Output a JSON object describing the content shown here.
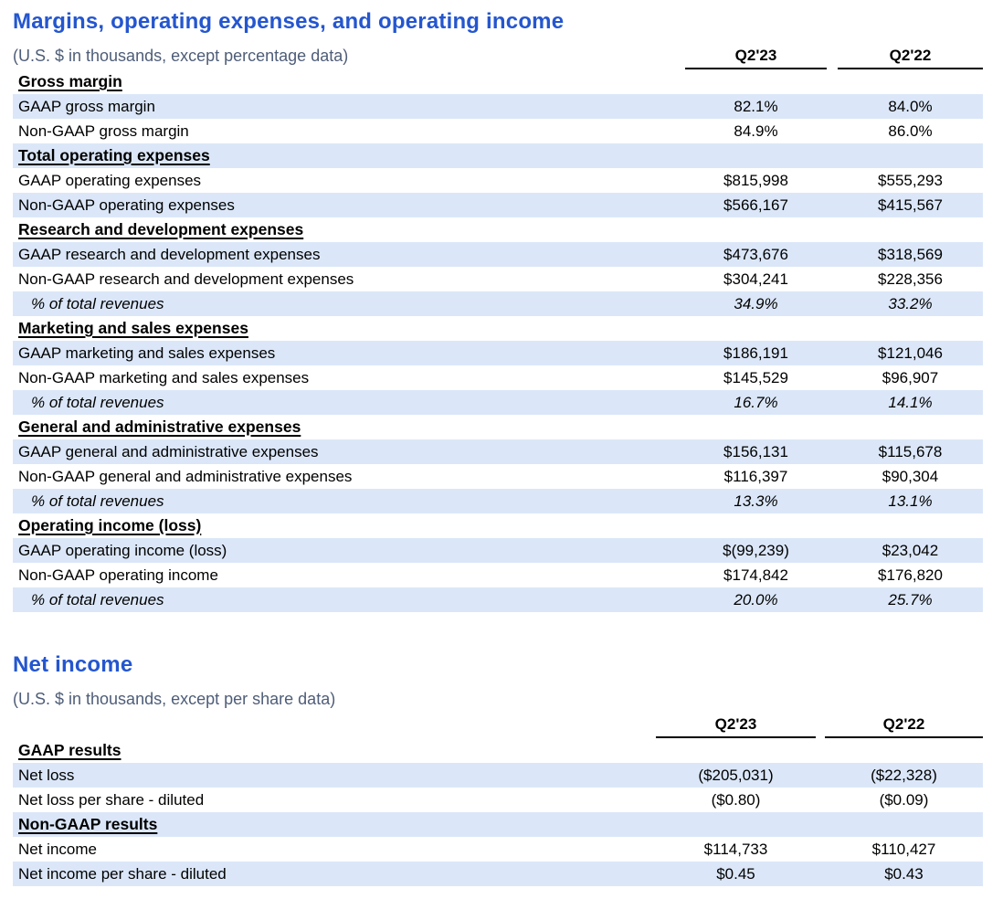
{
  "colors": {
    "title_blue": "#2456cf",
    "subtitle_gray": "#4e5d78",
    "row_shade_blue": "#dbe7f8",
    "text": "#000000"
  },
  "tables": [
    {
      "title": "Margins, operating expenses, and operating income",
      "subtitle": "(U.S. $ in thousands, except percentage data)",
      "columns": [
        "Q2'23",
        "Q2'22"
      ],
      "rows": [
        {
          "type": "section",
          "label": "Gross margin",
          "values": [
            "",
            ""
          ],
          "shaded": false
        },
        {
          "type": "data",
          "label": "GAAP gross margin",
          "values": [
            "82.1%",
            "84.0%"
          ],
          "shaded": true
        },
        {
          "type": "data",
          "label": "Non-GAAP gross margin",
          "values": [
            "84.9%",
            "86.0%"
          ],
          "shaded": false
        },
        {
          "type": "section",
          "label": "Total operating expenses",
          "values": [
            "",
            ""
          ],
          "shaded": true
        },
        {
          "type": "data",
          "label": "GAAP operating expenses",
          "values": [
            "$815,998",
            "$555,293"
          ],
          "shaded": false
        },
        {
          "type": "data",
          "label": "Non-GAAP operating expenses",
          "values": [
            "$566,167",
            "$415,567"
          ],
          "shaded": true
        },
        {
          "type": "section",
          "label": "Research and development expenses",
          "values": [
            "",
            ""
          ],
          "shaded": false
        },
        {
          "type": "data",
          "label": "GAAP research and development expenses",
          "values": [
            "$473,676",
            "$318,569"
          ],
          "shaded": true
        },
        {
          "type": "data",
          "label": "Non-GAAP research and development expenses",
          "values": [
            "$304,241",
            "$228,356"
          ],
          "shaded": false
        },
        {
          "type": "percent",
          "label": "% of total revenues",
          "values": [
            "34.9%",
            "33.2%"
          ],
          "shaded": true
        },
        {
          "type": "section",
          "label": "Marketing and sales expenses",
          "values": [
            "",
            ""
          ],
          "shaded": false
        },
        {
          "type": "data",
          "label": "GAAP marketing and sales expenses",
          "values": [
            "$186,191",
            "$121,046"
          ],
          "shaded": true
        },
        {
          "type": "data",
          "label": "Non-GAAP marketing and sales expenses",
          "values": [
            "$145,529",
            "$96,907"
          ],
          "shaded": false
        },
        {
          "type": "percent",
          "label": "% of total revenues",
          "values": [
            "16.7%",
            "14.1%"
          ],
          "shaded": true
        },
        {
          "type": "section",
          "label": "General and administrative expenses",
          "values": [
            "",
            ""
          ],
          "shaded": false
        },
        {
          "type": "data",
          "label": "GAAP general and administrative expenses",
          "values": [
            "$156,131",
            "$115,678"
          ],
          "shaded": true
        },
        {
          "type": "data",
          "label": "Non-GAAP general and administrative expenses",
          "values": [
            "$116,397",
            "$90,304"
          ],
          "shaded": false
        },
        {
          "type": "percent",
          "label": "% of total revenues",
          "values": [
            "13.3%",
            "13.1%"
          ],
          "shaded": true
        },
        {
          "type": "section",
          "label": "Operating income (loss)",
          "values": [
            "",
            ""
          ],
          "shaded": false
        },
        {
          "type": "data",
          "label": "GAAP operating income (loss)",
          "values": [
            "$(99,239)",
            "$23,042"
          ],
          "shaded": true
        },
        {
          "type": "data",
          "label": "Non-GAAP operating income",
          "values": [
            "$174,842",
            "$176,820"
          ],
          "shaded": false
        },
        {
          "type": "percent",
          "label": "% of total revenues",
          "values": [
            "20.0%",
            "25.7%"
          ],
          "shaded": true
        }
      ]
    },
    {
      "title": "Net income",
      "subtitle": "(U.S. $ in thousands, except per share data)",
      "columns": [
        "Q2'23",
        "Q2'22"
      ],
      "rows": [
        {
          "type": "section",
          "label": "GAAP results",
          "values": [
            "",
            ""
          ],
          "shaded": false
        },
        {
          "type": "data",
          "label": "Net loss",
          "values": [
            "($205,031)",
            "($22,328)"
          ],
          "shaded": true
        },
        {
          "type": "data",
          "label": "Net loss per share - diluted",
          "values": [
            "($0.80)",
            "($0.09)"
          ],
          "shaded": false
        },
        {
          "type": "section",
          "label": "Non-GAAP results",
          "values": [
            "",
            ""
          ],
          "shaded": true
        },
        {
          "type": "data",
          "label": "Net income",
          "values": [
            "$114,733",
            "$110,427"
          ],
          "shaded": false
        },
        {
          "type": "data",
          "label": "Net income per share - diluted",
          "values": [
            "$0.45",
            "$0.43"
          ],
          "shaded": true
        }
      ]
    }
  ]
}
